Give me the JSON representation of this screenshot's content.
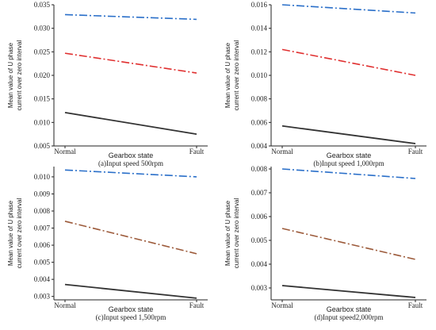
{
  "chart_data": [
    {
      "type": "line",
      "caption": "(a)Input speed 500rpm",
      "xlabel": "Gearbox state",
      "ylabel": [
        "Mean value of U phase",
        "current over zero interval"
      ],
      "categories": [
        "Normal",
        "Fault"
      ],
      "ylim": [
        0.005,
        0.035
      ],
      "yticks": [
        "0.005",
        "0.010",
        "0.015",
        "0.020",
        "0.025",
        "0.030",
        "0.035"
      ],
      "series": [
        {
          "values": [
            0.0329,
            0.0319
          ],
          "color": "#2a6fc9",
          "dash": "dashdot"
        },
        {
          "values": [
            0.0247,
            0.0205
          ],
          "color": "#e03030",
          "dash": "dashdot"
        },
        {
          "values": [
            0.0121,
            0.0075
          ],
          "color": "#333333",
          "dash": "solid"
        }
      ]
    },
    {
      "type": "line",
      "caption": "(b)Input speed  1,000rpm",
      "xlabel": "Gearbox state",
      "ylabel": [
        "Mean value of U phase",
        "current over zero interval"
      ],
      "categories": [
        "Normal",
        "Fault"
      ],
      "ylim": [
        0.004,
        0.016
      ],
      "yticks": [
        "0.004",
        "0.006",
        "0.008",
        "0.010",
        "0.012",
        "0.014",
        "0.016"
      ],
      "series": [
        {
          "values": [
            0.016,
            0.0153
          ],
          "color": "#2a6fc9",
          "dash": "dashdot"
        },
        {
          "values": [
            0.0122,
            0.01
          ],
          "color": "#e03030",
          "dash": "dashdot"
        },
        {
          "values": [
            0.0057,
            0.0042
          ],
          "color": "#333333",
          "dash": "solid"
        }
      ]
    },
    {
      "type": "line",
      "caption": "(c)Input speed 1,500rpm",
      "xlabel": "Gearbox state",
      "ylabel": [
        "Mean value of U phase",
        "current over zero interval"
      ],
      "categories": [
        "Normal",
        "Fault"
      ],
      "ylim": [
        0.0028,
        0.0106
      ],
      "yticks": [
        "0.003",
        "0.004",
        "0.005",
        "0.006",
        "0.007",
        "0.008",
        "0.009",
        "0.010"
      ],
      "series": [
        {
          "values": [
            0.0104,
            0.01
          ],
          "color": "#2a6fc9",
          "dash": "dashdot"
        },
        {
          "values": [
            0.0074,
            0.0055
          ],
          "color": "#9c5a3a",
          "dash": "dashdot"
        },
        {
          "values": [
            0.0037,
            0.0029
          ],
          "color": "#333333",
          "dash": "solid"
        }
      ]
    },
    {
      "type": "line",
      "caption": "(d)Input speed2,000rpm",
      "xlabel": "Gearbox state",
      "ylabel": [
        "Mean value of U phase",
        "current over zero interval"
      ],
      "categories": [
        "Normal",
        "Fault"
      ],
      "ylim": [
        0.0025,
        0.0081
      ],
      "yticks": [
        "0.003",
        "0.004",
        "0.005",
        "0.006",
        "0.007",
        "0.008"
      ],
      "series": [
        {
          "values": [
            0.008,
            0.0076
          ],
          "color": "#2a6fc9",
          "dash": "dashdot"
        },
        {
          "values": [
            0.0055,
            0.0042
          ],
          "color": "#9c5a3a",
          "dash": "dashdot"
        },
        {
          "values": [
            0.0031,
            0.0026
          ],
          "color": "#333333",
          "dash": "solid"
        }
      ]
    }
  ]
}
